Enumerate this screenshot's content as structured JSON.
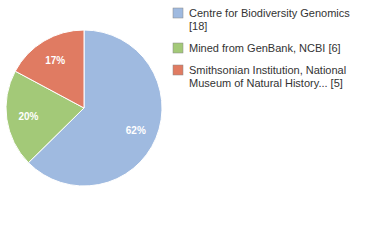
{
  "chart_data": {
    "type": "pie",
    "categories": [
      "Centre for Biodiversity Genomics [18]",
      "Mined from GenBank, NCBI [6]",
      "Smithsonian Institution, National Museum of Natural History... [5]"
    ],
    "values": [
      62,
      20,
      17
    ],
    "value_labels": [
      "62%",
      "20%",
      "17%"
    ],
    "colors": [
      "#9fbae0",
      "#a3c978",
      "#e07b62"
    ],
    "data_labels": true,
    "legend": "right"
  }
}
